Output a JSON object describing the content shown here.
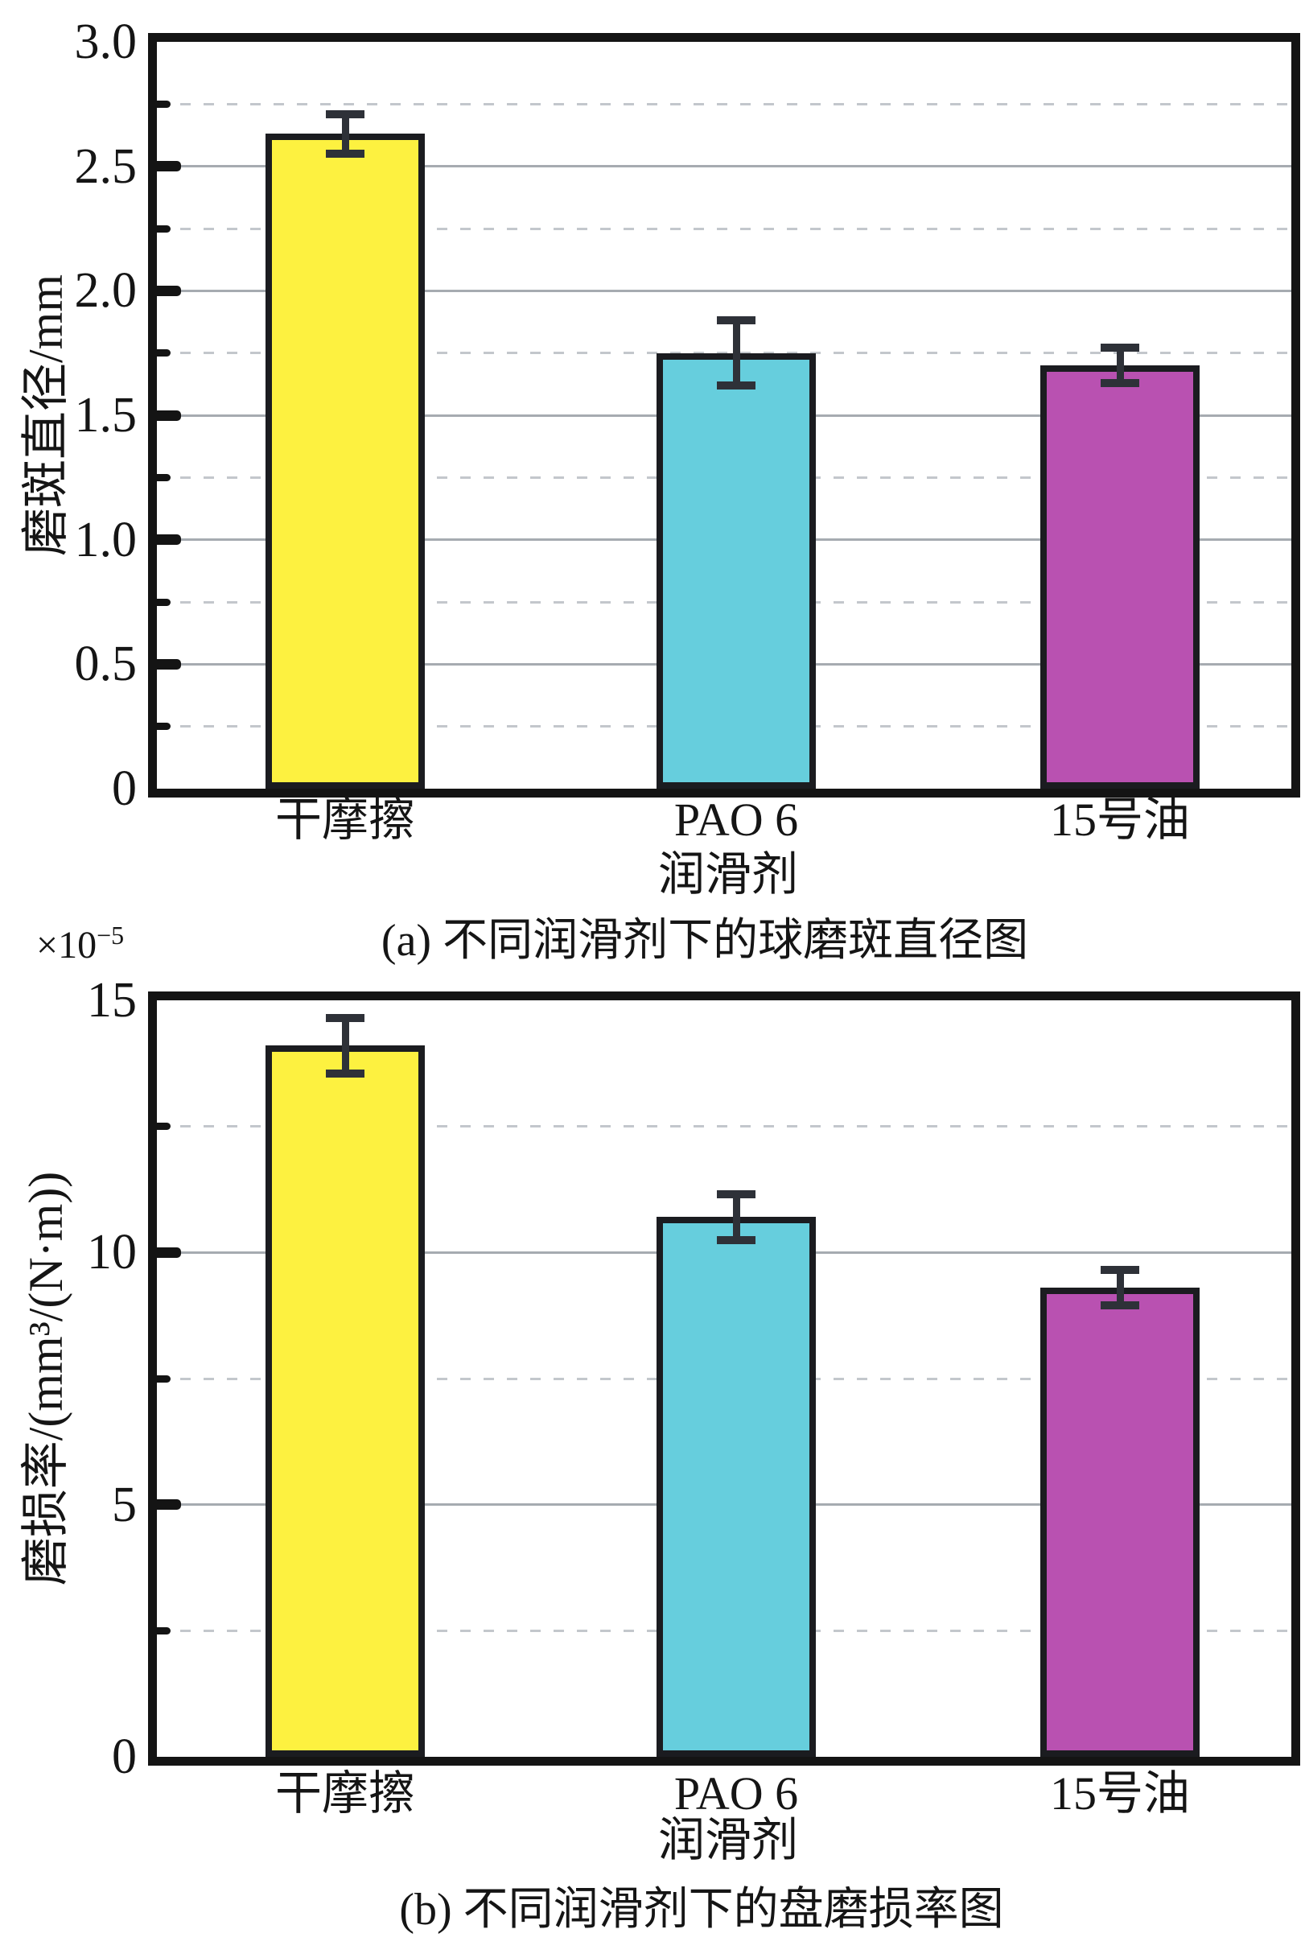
{
  "figure": {
    "background": "#ffffff",
    "text_color": "#151515",
    "axis_color": "#141414",
    "grid_major_color": "#a6abb1",
    "grid_minor_color": "#c3c7cc",
    "error_bar_color": "#2e3138",
    "bar_border_color": "#1b1c20"
  },
  "chart_data": [
    {
      "id": "a",
      "type": "bar",
      "caption": "(a) 不同润滑剂下的球磨斑直径图",
      "ylabel": "磨斑直径/mm",
      "xlabel": "润滑剂",
      "categories": [
        "干摩擦",
        "PAO 6",
        "15号油"
      ],
      "values": [
        2.63,
        1.75,
        1.7
      ],
      "errors": [
        0.08,
        0.13,
        0.07
      ],
      "ylim": [
        0,
        3.0
      ],
      "ytick_step": 0.5,
      "minor_tick_step": 0.25,
      "ytick_labels": [
        "3.0",
        "2.5",
        "2.0",
        "1.5",
        "1.0",
        "0.5",
        "0"
      ],
      "grid": "solid lines at major ticks, dashed lines at minor ticks",
      "legend": "none",
      "bar_colors": [
        "#fdf140",
        "#66cedd",
        "#b951b1"
      ]
    },
    {
      "id": "b",
      "type": "bar",
      "caption": "(b) 不同润滑剂下的盘磨损率图",
      "ylabel": "磨损率/(mm³/(N·m))",
      "scale_label": {
        "base": "×10",
        "exponent": "−5"
      },
      "xlabel": "润滑剂",
      "categories": [
        "干摩擦",
        "PAO 6",
        "15号油"
      ],
      "values": [
        14.1,
        10.7,
        9.3
      ],
      "errors": [
        0.55,
        0.45,
        0.35
      ],
      "ylim": [
        0,
        15
      ],
      "ytick_step": 5,
      "minor_tick_step": 2.5,
      "ytick_labels": [
        "15",
        "10",
        "5",
        "0"
      ],
      "grid": "solid lines at major ticks, dashed lines at minor ticks",
      "legend": "none",
      "bar_colors": [
        "#fdf140",
        "#66cedd",
        "#b951b1"
      ]
    }
  ]
}
